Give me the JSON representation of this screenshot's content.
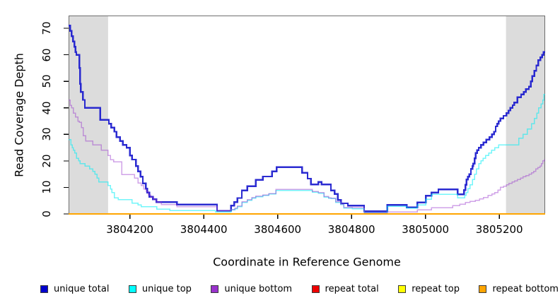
{
  "figure": {
    "xlabel": "Coordinate in Reference Genome",
    "ylabel": "Read Coverage Depth"
  },
  "chart_data": {
    "type": "line",
    "style": "step",
    "title": "",
    "xlabel": "Coordinate in Reference Genome",
    "ylabel": "Read Coverage Depth",
    "xlim": [
      3804034,
      3805324
    ],
    "ylim": [
      0,
      74.8
    ],
    "x_ticks": [
      3804200,
      3804400,
      3804600,
      3804800,
      3805000,
      3805200
    ],
    "x_tick_labels": [
      "3804200",
      "3804400",
      "3804600",
      "3804800",
      "3805000",
      "3805200"
    ],
    "y_ticks": [
      0,
      10,
      20,
      30,
      40,
      50,
      60,
      70
    ],
    "y_tick_labels": [
      "0",
      "10",
      "20",
      "30",
      "40",
      "50",
      "60",
      "70"
    ],
    "grid": false,
    "legend_position": "bottom",
    "shade_color": "#DCDCDC",
    "shaded_regions": [
      {
        "x0": 3804034,
        "x1": 3804141
      },
      {
        "x0": 3805218,
        "x1": 3805324
      }
    ],
    "series": [
      {
        "name": "unique total",
        "legend_color": "#0000CD",
        "line_color": "rgba(25,25,205,0.92)",
        "line_width": 2.4,
        "points": [
          [
            3804034,
            71
          ],
          [
            3804038,
            69
          ],
          [
            3804042,
            67
          ],
          [
            3804046,
            65
          ],
          [
            3804050,
            63
          ],
          [
            3804053,
            61
          ],
          [
            3804055,
            60
          ],
          [
            3804063,
            55
          ],
          [
            3804065,
            49
          ],
          [
            3804067,
            46
          ],
          [
            3804073,
            43
          ],
          [
            3804078,
            40
          ],
          [
            3804120,
            35.5
          ],
          [
            3804143,
            34
          ],
          [
            3804149,
            32.5
          ],
          [
            3804158,
            31
          ],
          [
            3804164,
            29
          ],
          [
            3804173,
            27.5
          ],
          [
            3804181,
            26
          ],
          [
            3804191,
            25
          ],
          [
            3804200,
            22
          ],
          [
            3804206,
            20.5
          ],
          [
            3804216,
            18
          ],
          [
            3804222,
            16
          ],
          [
            3804229,
            14
          ],
          [
            3804235,
            11.5
          ],
          [
            3804243,
            9.5
          ],
          [
            3804247,
            8
          ],
          [
            3804253,
            6.5
          ],
          [
            3804262,
            5.5
          ],
          [
            3804272,
            4.5
          ],
          [
            3804327,
            3.5
          ],
          [
            3804436,
            1.2
          ],
          [
            3804474,
            3.1
          ],
          [
            3804482,
            4.5
          ],
          [
            3804491,
            6
          ],
          [
            3804503,
            8.8
          ],
          [
            3804518,
            10.5
          ],
          [
            3804541,
            12.8
          ],
          [
            3804560,
            14.1
          ],
          [
            3804585,
            16
          ],
          [
            3804597,
            17.6
          ],
          [
            3804666,
            15.5
          ],
          [
            3804681,
            13.3
          ],
          [
            3804690,
            11.1
          ],
          [
            3804710,
            12
          ],
          [
            3804719,
            11.1
          ],
          [
            3804744,
            8.9
          ],
          [
            3804754,
            7.5
          ],
          [
            3804763,
            5.3
          ],
          [
            3804771,
            4
          ],
          [
            3804790,
            3.1
          ],
          [
            3804834,
            1
          ],
          [
            3804897,
            3.4
          ],
          [
            3804949,
            2.5
          ],
          [
            3804978,
            4.3
          ],
          [
            3805001,
            6.9
          ],
          [
            3805016,
            8.1
          ],
          [
            3805035,
            9.2
          ],
          [
            3805087,
            7.4
          ],
          [
            3805104,
            9
          ],
          [
            3805108,
            11
          ],
          [
            3805111,
            13
          ],
          [
            3805115,
            14
          ],
          [
            3805119,
            15
          ],
          [
            3805123,
            17
          ],
          [
            3805127,
            18
          ],
          [
            3805129,
            19
          ],
          [
            3805133,
            21
          ],
          [
            3805136,
            23
          ],
          [
            3805140,
            24
          ],
          [
            3805144,
            25
          ],
          [
            3805150,
            26
          ],
          [
            3805157,
            27
          ],
          [
            3805165,
            28
          ],
          [
            3805173,
            29
          ],
          [
            3805180,
            30
          ],
          [
            3805186,
            31
          ],
          [
            3805190,
            33
          ],
          [
            3805194,
            34
          ],
          [
            3805198,
            35
          ],
          [
            3805203,
            36
          ],
          [
            3805211,
            37
          ],
          [
            3805219,
            38
          ],
          [
            3805225,
            39
          ],
          [
            3805230,
            40
          ],
          [
            3805236,
            41
          ],
          [
            3805240,
            42
          ],
          [
            3805249,
            44
          ],
          [
            3805259,
            45
          ],
          [
            3805266,
            46
          ],
          [
            3805272,
            47
          ],
          [
            3805280,
            48
          ],
          [
            3805285,
            50
          ],
          [
            3805289,
            52
          ],
          [
            3805295,
            54
          ],
          [
            3805300,
            56
          ],
          [
            3805305,
            58
          ],
          [
            3805311,
            59
          ],
          [
            3805316,
            60
          ],
          [
            3805320,
            61
          ]
        ]
      },
      {
        "name": "unique top",
        "legend_color": "#00FFFF",
        "line_color": "rgba(0,238,245,0.55)",
        "line_width": 1.5,
        "points": [
          [
            3804034,
            28
          ],
          [
            3804040,
            26
          ],
          [
            3804044,
            25
          ],
          [
            3804047,
            24
          ],
          [
            3804051,
            23
          ],
          [
            3804055,
            21
          ],
          [
            3804061,
            20
          ],
          [
            3804065,
            19
          ],
          [
            3804078,
            18
          ],
          [
            3804091,
            17
          ],
          [
            3804099,
            16
          ],
          [
            3804105,
            15
          ],
          [
            3804111,
            13.5
          ],
          [
            3804116,
            12
          ],
          [
            3804141,
            10.7
          ],
          [
            3804147,
            9.4
          ],
          [
            3804151,
            8.1
          ],
          [
            3804158,
            6.1
          ],
          [
            3804168,
            5.4
          ],
          [
            3804206,
            4.1
          ],
          [
            3804222,
            3.4
          ],
          [
            3804231,
            2.7
          ],
          [
            3804273,
            1.8
          ],
          [
            3804308,
            1.3
          ],
          [
            3804432,
            0.8
          ],
          [
            3804474,
            1.5
          ],
          [
            3804484,
            2
          ],
          [
            3804491,
            2.8
          ],
          [
            3804503,
            4.4
          ],
          [
            3804518,
            5.2
          ],
          [
            3804530,
            6
          ],
          [
            3804541,
            6.5
          ],
          [
            3804560,
            7
          ],
          [
            3804576,
            7.5
          ],
          [
            3804595,
            8.8
          ],
          [
            3804694,
            8.2
          ],
          [
            3804710,
            7.8
          ],
          [
            3804725,
            6.4
          ],
          [
            3804738,
            5.9
          ],
          [
            3804744,
            5.8
          ],
          [
            3804757,
            4.4
          ],
          [
            3804770,
            3.5
          ],
          [
            3804779,
            2.2
          ],
          [
            3804802,
            2
          ],
          [
            3804834,
            0.5
          ],
          [
            3804897,
            2.9
          ],
          [
            3804949,
            2.2
          ],
          [
            3804978,
            3.4
          ],
          [
            3805001,
            5.5
          ],
          [
            3805016,
            7.4
          ],
          [
            3805087,
            6.1
          ],
          [
            3805106,
            7
          ],
          [
            3805110,
            8
          ],
          [
            3805115,
            9.5
          ],
          [
            3805121,
            11
          ],
          [
            3805127,
            13
          ],
          [
            3805133,
            15
          ],
          [
            3805138,
            17
          ],
          [
            3805144,
            19
          ],
          [
            3805150,
            20
          ],
          [
            3805156,
            21
          ],
          [
            3805163,
            22
          ],
          [
            3805171,
            23
          ],
          [
            3805179,
            24
          ],
          [
            3805188,
            25
          ],
          [
            3805198,
            26
          ],
          [
            3805253,
            28.5
          ],
          [
            3805264,
            30
          ],
          [
            3805276,
            32
          ],
          [
            3805287,
            34
          ],
          [
            3805295,
            36
          ],
          [
            3805301,
            38
          ],
          [
            3805306,
            40
          ],
          [
            3805313,
            41.5
          ],
          [
            3805318,
            43
          ],
          [
            3805321,
            45
          ]
        ]
      },
      {
        "name": "unique bottom",
        "legend_color": "#9932CC",
        "line_color": "rgba(150,50,205,0.45)",
        "line_width": 1.5,
        "points": [
          [
            3804034,
            43
          ],
          [
            3804038,
            41
          ],
          [
            3804042,
            40
          ],
          [
            3804047,
            38
          ],
          [
            3804053,
            36.5
          ],
          [
            3804059,
            35
          ],
          [
            3804063,
            34.5
          ],
          [
            3804069,
            32.5
          ],
          [
            3804074,
            29.5
          ],
          [
            3804080,
            27.5
          ],
          [
            3804099,
            26
          ],
          [
            3804122,
            24
          ],
          [
            3804141,
            22
          ],
          [
            3804147,
            20.5
          ],
          [
            3804156,
            19.6
          ],
          [
            3804178,
            14.8
          ],
          [
            3804212,
            13.5
          ],
          [
            3804222,
            11.6
          ],
          [
            3804231,
            10.7
          ],
          [
            3804237,
            9.4
          ],
          [
            3804244,
            8.5
          ],
          [
            3804250,
            7.2
          ],
          [
            3804256,
            6.3
          ],
          [
            3804264,
            5.4
          ],
          [
            3804273,
            4.5
          ],
          [
            3804285,
            3.6
          ],
          [
            3804327,
            2.8
          ],
          [
            3804436,
            1.3
          ],
          [
            3804474,
            1.7
          ],
          [
            3804484,
            2.2
          ],
          [
            3804491,
            3
          ],
          [
            3804503,
            4.6
          ],
          [
            3804518,
            5.4
          ],
          [
            3804530,
            6.2
          ],
          [
            3804541,
            6.7
          ],
          [
            3804560,
            7.2
          ],
          [
            3804576,
            7.7
          ],
          [
            3804595,
            9.2
          ],
          [
            3804694,
            8.5
          ],
          [
            3804710,
            8
          ],
          [
            3804725,
            6.6
          ],
          [
            3804738,
            6.1
          ],
          [
            3804744,
            6
          ],
          [
            3804757,
            4.6
          ],
          [
            3804770,
            3.7
          ],
          [
            3804779,
            2.5
          ],
          [
            3804802,
            2.3
          ],
          [
            3804834,
            0.5
          ],
          [
            3804897,
            0.8
          ],
          [
            3804978,
            1.5
          ],
          [
            3805016,
            2.3
          ],
          [
            3805074,
            3.1
          ],
          [
            3805093,
            3.7
          ],
          [
            3805108,
            4.3
          ],
          [
            3805121,
            4.8
          ],
          [
            3805135,
            5.2
          ],
          [
            3805146,
            5.7
          ],
          [
            3805157,
            6.2
          ],
          [
            3805169,
            7
          ],
          [
            3805180,
            7.5
          ],
          [
            3805188,
            8
          ],
          [
            3805196,
            9
          ],
          [
            3805203,
            10
          ],
          [
            3805211,
            10.5
          ],
          [
            3805219,
            11
          ],
          [
            3805226,
            11.5
          ],
          [
            3805234,
            12
          ],
          [
            3805241,
            12.5
          ],
          [
            3805249,
            13
          ],
          [
            3805257,
            13.5
          ],
          [
            3805264,
            14
          ],
          [
            3805272,
            14.5
          ],
          [
            3805280,
            15
          ],
          [
            3805287,
            15.5
          ],
          [
            3805293,
            16
          ],
          [
            3805299,
            17
          ],
          [
            3805304,
            17.5
          ],
          [
            3805310,
            18
          ],
          [
            3805314,
            19
          ],
          [
            3805318,
            20
          ],
          [
            3805322,
            20.5
          ]
        ]
      },
      {
        "name": "repeat total",
        "legend_color": "#EE0000",
        "line_color": "rgba(204,0,0,0.95)",
        "line_width": 1.5,
        "points": [
          [
            3804034,
            0
          ],
          [
            3805324,
            0
          ]
        ]
      },
      {
        "name": "repeat top",
        "legend_color": "#FFFF00",
        "line_color": "rgba(255,255,0,0.95)",
        "line_width": 1.5,
        "points": [
          [
            3804034,
            0
          ],
          [
            3805324,
            0
          ]
        ]
      },
      {
        "name": "repeat bottom",
        "legend_color": "#FFA500",
        "line_color": "#FFA500",
        "line_width": 1.8,
        "points": [
          [
            3804034,
            0
          ],
          [
            3805324,
            0
          ]
        ]
      }
    ]
  }
}
